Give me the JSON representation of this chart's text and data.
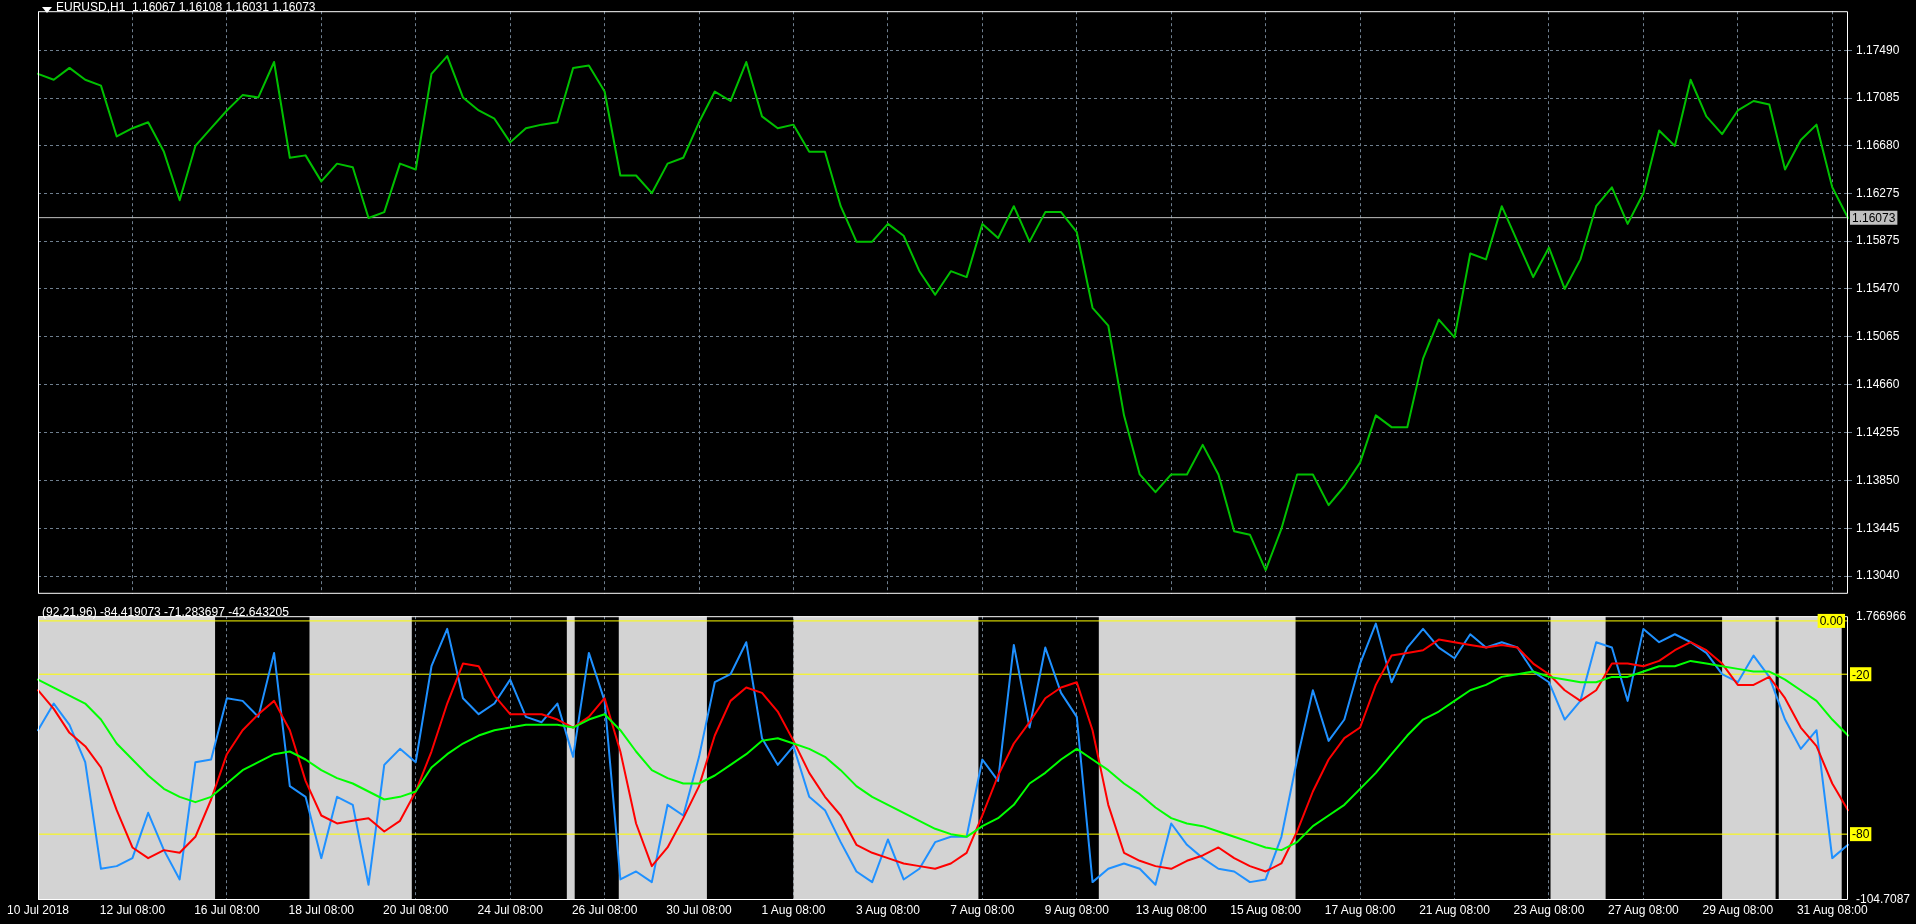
{
  "chart_data": [
    {
      "type": "line",
      "title": "EURUSD,H1  1.16067 1.16108 1.16031 1.16073",
      "categories": [
        null,
        null,
        null,
        null,
        null,
        null,
        null,
        null,
        null,
        null,
        null,
        null,
        null,
        null,
        null,
        null,
        null,
        null,
        null,
        null,
        null,
        null,
        null,
        null,
        null,
        null,
        null,
        null,
        null,
        null,
        null,
        null,
        null,
        null,
        null,
        null,
        null,
        null,
        null,
        null,
        null,
        null,
        null,
        null,
        null,
        null,
        null,
        null,
        null,
        null,
        null,
        null,
        null,
        null,
        null,
        null,
        null,
        null,
        null,
        null,
        null,
        null,
        null,
        null,
        null,
        null,
        null,
        null,
        null,
        null,
        null,
        null,
        null,
        null,
        null,
        null,
        null,
        null,
        null,
        null,
        null,
        null,
        null,
        null,
        null,
        null,
        null,
        null,
        null,
        null,
        null,
        null,
        null,
        null,
        null,
        null,
        null,
        null,
        null,
        null,
        null,
        null,
        null,
        null,
        null,
        null,
        null,
        null,
        null,
        null,
        null,
        null,
        null,
        null,
        null,
        null
      ],
      "series": [
        {
          "color": "#00c000",
          "values": [
            1.1729,
            1.1724,
            1.1734,
            1.1724,
            1.1719,
            1.1676,
            1.1683,
            1.1688,
            1.1663,
            1.1622,
            1.1668,
            1.1683,
            1.1698,
            1.1711,
            1.1709,
            1.1739,
            1.1658,
            1.166,
            1.1638,
            1.1653,
            1.165,
            1.1607,
            1.1612,
            1.1653,
            1.1648,
            1.1729,
            1.1744,
            1.1709,
            1.1698,
            1.1691,
            1.1671,
            1.1683,
            1.1686,
            1.1688,
            1.1734,
            1.1736,
            1.1714,
            1.1643,
            1.1643,
            1.1628,
            1.1653,
            1.1658,
            1.1688,
            1.1714,
            1.1706,
            1.1739,
            1.1693,
            1.1683,
            1.1686,
            1.1663,
            1.1663,
            1.1617,
            1.1587,
            1.1587,
            1.1602,
            1.1592,
            1.1562,
            1.1542,
            1.1562,
            1.1557,
            1.1602,
            1.159,
            1.1617,
            1.1587,
            1.1612,
            1.1612,
            1.1595,
            1.1531,
            1.1516,
            1.144,
            1.139,
            1.1375,
            1.139,
            1.139,
            1.1415,
            1.139,
            1.1342,
            1.1339,
            1.1309,
            1.1344,
            1.139,
            1.139,
            1.1364,
            1.138,
            1.14,
            1.144,
            1.143,
            1.143,
            1.1488,
            1.1521,
            1.1506,
            1.1577,
            1.1572,
            1.1617,
            1.1587,
            1.1557,
            1.1582,
            1.1547,
            1.1572,
            1.1617,
            1.1633,
            1.1602,
            1.1628,
            1.1681,
            1.1668,
            1.1724,
            1.1693,
            1.1678,
            1.1698,
            1.1706,
            1.1703,
            1.1648,
            1.1673,
            1.1686,
            1.1633,
            1.1607
          ]
        }
      ],
      "ylim": [
        1.1289,
        1.1782
      ],
      "yticks": [
        {
          "value": 1.1749,
          "label": "1.17490"
        },
        1.17085,
        {
          "value": 1.1668,
          "label": "1.16680"
        },
        1.16275,
        1.15875,
        {
          "value": 1.1547,
          "label": "1.15470"
        },
        1.15065,
        {
          "value": 1.1466,
          "label": "1.14660"
        },
        1.14255,
        {
          "value": 1.1385,
          "label": "1.13850"
        },
        1.13445,
        {
          "value": 1.1304,
          "label": "1.13040"
        }
      ],
      "tick_labels": "y",
      "grid": true,
      "ref_lines": [
        {
          "axis": "y",
          "value": 1.16073,
          "label": "1.16073",
          "color": "#c0c0c0"
        }
      ]
    },
    {
      "type": "line",
      "title": "(92,21,96) -84.419073 -71.283697 -42.643205",
      "categories": [
        "10 Jul 2018",
        null,
        null,
        null,
        null,
        null,
        "12 Jul 08:00",
        null,
        null,
        null,
        null,
        null,
        "16 Jul 08:00",
        null,
        null,
        null,
        null,
        null,
        "18 Jul 08:00",
        null,
        null,
        null,
        null,
        null,
        "20 Jul 08:00",
        null,
        null,
        null,
        null,
        null,
        "24 Jul 08:00",
        null,
        null,
        null,
        null,
        null,
        "26 Jul 08:00",
        null,
        null,
        null,
        null,
        null,
        "30 Jul 08:00",
        null,
        null,
        null,
        null,
        null,
        "1 Aug 08:00",
        null,
        null,
        null,
        null,
        null,
        "3 Aug 08:00",
        null,
        null,
        null,
        null,
        null,
        "7 Aug 08:00",
        null,
        null,
        null,
        null,
        null,
        "9 Aug 08:00",
        null,
        null,
        null,
        null,
        null,
        "13 Aug 08:00",
        null,
        null,
        null,
        null,
        null,
        "15 Aug 08:00",
        null,
        null,
        null,
        null,
        null,
        "17 Aug 08:00",
        null,
        null,
        null,
        null,
        null,
        "21 Aug 08:00",
        null,
        null,
        null,
        null,
        null,
        "23 Aug 08:00",
        null,
        null,
        null,
        null,
        null,
        "27 Aug 08:00",
        null,
        null,
        null,
        null,
        null,
        "29 Aug 08:00",
        null,
        null,
        null,
        null,
        null,
        "31 Aug 08:00",
        null
      ],
      "series": [
        {
          "color": "#1e90ff",
          "values": [
            -41,
            -31,
            -39,
            -53,
            -93,
            -92,
            -89,
            -72,
            -86,
            -97,
            -53,
            -52,
            -29,
            -30,
            -36,
            -12,
            -62,
            -66,
            -89,
            -66,
            -69,
            -99,
            -54,
            -48,
            -53,
            -17,
            -3,
            -29,
            -35,
            -31,
            -22,
            -36,
            -38,
            -31,
            -51,
            -12,
            -30,
            -97,
            -94,
            -98,
            -69,
            -73,
            -51,
            -23,
            -20,
            -8,
            -44,
            -54,
            -47,
            -66,
            -71,
            -83,
            -94,
            -98,
            -82,
            -97,
            -93,
            -83,
            -81,
            -81,
            -52,
            -60,
            -9,
            -40,
            -10,
            -27,
            -36,
            -98,
            -93,
            -91,
            -93,
            -99,
            -76,
            -84,
            -89,
            -93,
            -94,
            -98,
            -97,
            -81,
            -52,
            -26,
            -45,
            -37,
            -16,
            -1,
            -23,
            -10,
            -3,
            -10,
            -14,
            -5,
            -10,
            -8,
            -10,
            -19,
            -23,
            -37,
            -30,
            -8,
            -10,
            -30,
            -3,
            -8,
            -5,
            -8,
            -12,
            -20,
            -23,
            -13,
            -21,
            -37,
            -48,
            -41,
            -89,
            -84
          ]
        },
        {
          "color": "#ff0000",
          "values": [
            -26,
            -33,
            -42,
            -47,
            -55,
            -71,
            -85,
            -89,
            -86,
            -87,
            -81,
            -67,
            -50,
            -41,
            -35,
            -30,
            -41,
            -60,
            -73,
            -76,
            -75,
            -74,
            -79,
            -75,
            -64,
            -49,
            -31,
            -16,
            -17,
            -28,
            -35,
            -35,
            -35,
            -37,
            -40,
            -36,
            -29,
            -49,
            -76,
            -92,
            -85,
            -74,
            -62,
            -43,
            -30,
            -25,
            -27,
            -34,
            -45,
            -57,
            -66,
            -73,
            -84,
            -87,
            -89,
            -91,
            -92,
            -93,
            -91,
            -87,
            -73,
            -58,
            -46,
            -38,
            -29,
            -25,
            -23,
            -41,
            -69,
            -87,
            -90,
            -92,
            -93,
            -90,
            -88,
            -85,
            -89,
            -92,
            -94,
            -91,
            -79,
            -64,
            -52,
            -44,
            -40,
            -24,
            -13,
            -12,
            -11,
            -7,
            -8,
            -9,
            -10,
            -9,
            -10,
            -16,
            -20,
            -26,
            -30,
            -26,
            -16,
            -16,
            -17,
            -15,
            -11,
            -8,
            -11,
            -16,
            -24,
            -24,
            -21,
            -29,
            -40,
            -47,
            -61,
            -71
          ]
        },
        {
          "color": "#00ff00",
          "values": [
            -22,
            -25,
            -28,
            -31,
            -37,
            -46,
            -52,
            -58,
            -63,
            -66,
            -68,
            -66,
            -61,
            -56,
            -53,
            -50,
            -49,
            -52,
            -56,
            -59,
            -61,
            -64,
            -67,
            -66,
            -64,
            -55,
            -50,
            -46,
            -43,
            -41,
            -40,
            -39,
            -39,
            -39,
            -40,
            -37,
            -35,
            -41,
            -49,
            -56,
            -59,
            -61,
            -61,
            -58,
            -54,
            -50,
            -45,
            -44,
            -46,
            -48,
            -51,
            -56,
            -62,
            -66,
            -69,
            -72,
            -75,
            -78,
            -80,
            -81,
            -77,
            -74,
            -69,
            -61,
            -57,
            -52,
            -48,
            -52,
            -56,
            -61,
            -65,
            -70,
            -74,
            -76,
            -77,
            -79,
            -81,
            -83,
            -85,
            -86,
            -83,
            -77,
            -73,
            -69,
            -63,
            -57,
            -50,
            -43,
            -37,
            -34,
            -30,
            -26,
            -24,
            -21,
            -20,
            -19,
            -21,
            -22,
            -23,
            -23,
            -21,
            -21,
            -19,
            -17,
            -17,
            -15,
            -16,
            -17,
            -18,
            -19,
            -19,
            -22,
            -26,
            -30,
            -37,
            -43
          ]
        }
      ],
      "ylim": [
        -104.7087,
        1.766966
      ],
      "yticks": [
        1.766966,
        -104.7087
      ],
      "grid": "x",
      "ref_lines": [
        {
          "axis": "y",
          "value": 0,
          "label": "0.00",
          "color": "#ffff00"
        },
        {
          "axis": "y",
          "value": -20,
          "label": "-20",
          "color": "#ffff00"
        },
        {
          "axis": "y",
          "value": -80,
          "label": "-80",
          "color": "#ffff00"
        }
      ]
    }
  ]
}
